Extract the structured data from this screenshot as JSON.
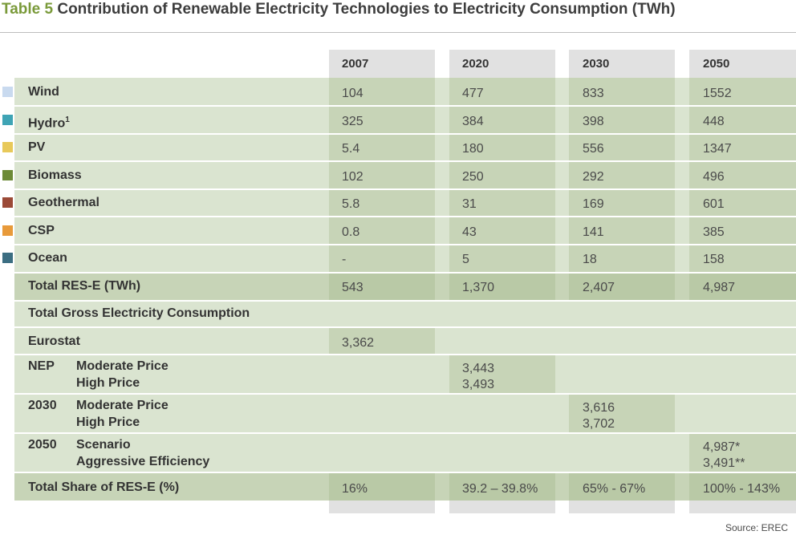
{
  "title": {
    "number": "Table 5",
    "text": "Contribution of Renewable Electricity Technologies to Electricity Consumption (TWh)"
  },
  "columns": [
    "2007",
    "2020",
    "2030",
    "2050"
  ],
  "colors": {
    "Wind": "#c9daef",
    "Hydro": "#3fa4b5",
    "PV": "#e8c95a",
    "Biomass": "#6d8a37",
    "Geothermal": "#9b4a37",
    "CSP": "#e89a3a",
    "Ocean": "#3c6e82"
  },
  "technologies": [
    {
      "label": "Wind",
      "values": [
        "104",
        "477",
        "833",
        "1552"
      ]
    },
    {
      "label": "Hydro",
      "sup": "1",
      "values": [
        "325",
        "384",
        "398",
        "448"
      ]
    },
    {
      "label": "PV",
      "values": [
        "5.4",
        "180",
        "556",
        "1347"
      ]
    },
    {
      "label": "Biomass",
      "values": [
        "102",
        "250",
        "292",
        "496"
      ]
    },
    {
      "label": "Geothermal",
      "values": [
        "5.8",
        "31",
        "169",
        "601"
      ]
    },
    {
      "label": "CSP",
      "values": [
        "0.8",
        "43",
        "141",
        "385"
      ]
    },
    {
      "label": "Ocean",
      "values": [
        "-",
        "5",
        "18",
        "158"
      ]
    }
  ],
  "total_res": {
    "label": "Total RES-E (TWh)",
    "values": [
      "543",
      "1,370",
      "2,407",
      "4,987"
    ]
  },
  "gross": {
    "heading": "Total Gross Electricity Consumption",
    "eurostat": {
      "label": "Eurostat",
      "value": "3,362"
    },
    "nep": {
      "label": "NEP",
      "sub1": "Moderate Price",
      "sub2": "High Price",
      "value1": "3,443",
      "value2": "3,493"
    },
    "y2030": {
      "label": "2030",
      "sub1": "Moderate Price",
      "sub2": "High Price",
      "value1": "3,616",
      "value2": "3,702"
    },
    "y2050": {
      "label": "2050",
      "sub1": "Scenario",
      "sub2": "Aggressive Efficiency",
      "value1": "4,987*",
      "value2": "3,491**"
    }
  },
  "share": {
    "label": "Total Share of RES-E (%)",
    "values": [
      "16%",
      "39.2 – 39.8%",
      "65% - 67%",
      "100% - 143%"
    ]
  },
  "source": "Source: EREC"
}
